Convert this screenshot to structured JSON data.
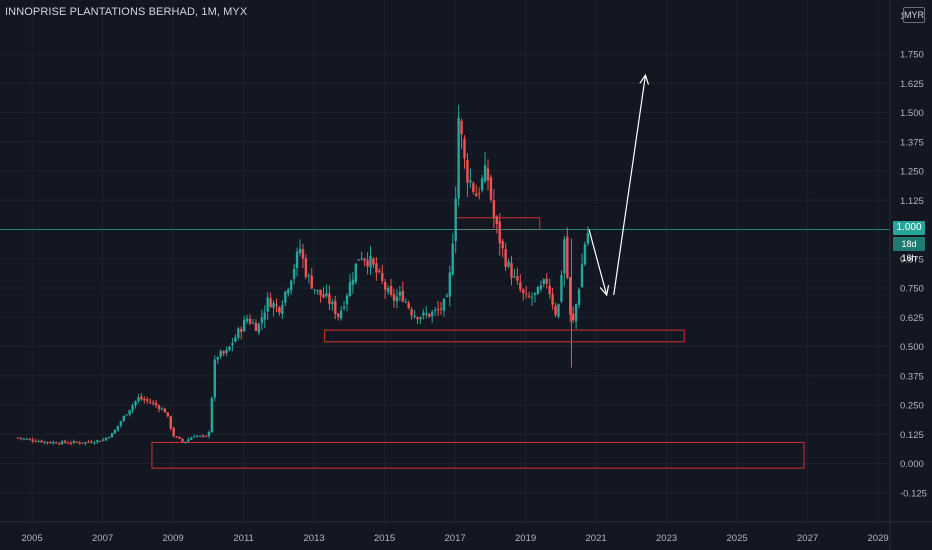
{
  "header": {
    "title": "INNOPRISE PLANTATIONS BERHAD, 1M, MYX",
    "currency": "MYR"
  },
  "price_tag": {
    "value": "1.000",
    "countdown": "18d 16h"
  },
  "colors": {
    "background": "#131722",
    "grid": "#1e222d",
    "up": "#26a69a",
    "down": "#ef5350",
    "zone": "#d32f2f",
    "arrow": "#ffffff",
    "axis_text": "#b2b5be"
  },
  "chart_data": {
    "type": "candlestick",
    "symbol": "INNOPRISE PLANTATIONS BERHAD",
    "interval": "1M",
    "exchange": "MYX",
    "currency": "MYR",
    "ylim": [
      -0.17,
      1.875
    ],
    "xlim": [
      2004.6,
      2030.0
    ],
    "y_ticks": [
      "1.750",
      "1.625",
      "1.500",
      "1.375",
      "1.250",
      "1.125",
      "1.000",
      "0.875",
      "0.750",
      "0.625",
      "0.500",
      "0.375",
      "0.250",
      "0.125",
      "0.000",
      "-0.125"
    ],
    "x_ticks": [
      "2005",
      "2007",
      "2009",
      "2011",
      "2013",
      "2015",
      "2017",
      "2019",
      "2021",
      "2023",
      "2025",
      "2027",
      "2029"
    ],
    "close_series": [
      [
        2004.6,
        0.11
      ],
      [
        2005.0,
        0.1
      ],
      [
        2005.5,
        0.09
      ],
      [
        2006.0,
        0.09
      ],
      [
        2006.5,
        0.09
      ],
      [
        2007.0,
        0.1
      ],
      [
        2007.3,
        0.13
      ],
      [
        2007.6,
        0.2
      ],
      [
        2008.0,
        0.28
      ],
      [
        2008.4,
        0.26
      ],
      [
        2008.8,
        0.22
      ],
      [
        2009.0,
        0.12
      ],
      [
        2009.3,
        0.09
      ],
      [
        2009.6,
        0.12
      ],
      [
        2010.0,
        0.11
      ],
      [
        2010.2,
        0.46
      ],
      [
        2010.5,
        0.47
      ],
      [
        2010.8,
        0.55
      ],
      [
        2011.1,
        0.62
      ],
      [
        2011.4,
        0.58
      ],
      [
        2011.7,
        0.7
      ],
      [
        2012.0,
        0.66
      ],
      [
        2012.3,
        0.78
      ],
      [
        2012.6,
        0.92
      ],
      [
        2012.8,
        0.8
      ],
      [
        2013.1,
        0.73
      ],
      [
        2013.4,
        0.7
      ],
      [
        2013.7,
        0.63
      ],
      [
        2014.0,
        0.76
      ],
      [
        2014.3,
        0.9
      ],
      [
        2014.6,
        0.86
      ],
      [
        2014.9,
        0.78
      ],
      [
        2015.2,
        0.7
      ],
      [
        2015.5,
        0.72
      ],
      [
        2015.8,
        0.64
      ],
      [
        2016.1,
        0.63
      ],
      [
        2016.5,
        0.65
      ],
      [
        2016.8,
        0.7
      ],
      [
        2017.0,
        1.1
      ],
      [
        2017.1,
        1.48
      ],
      [
        2017.3,
        1.25
      ],
      [
        2017.6,
        1.15
      ],
      [
        2017.9,
        1.25
      ],
      [
        2018.1,
        1.05
      ],
      [
        2018.4,
        0.88
      ],
      [
        2018.7,
        0.78
      ],
      [
        2019.0,
        0.7
      ],
      [
        2019.3,
        0.72
      ],
      [
        2019.6,
        0.78
      ],
      [
        2019.9,
        0.62
      ],
      [
        2020.1,
        0.96
      ],
      [
        2020.3,
        0.56
      ],
      [
        2020.5,
        0.74
      ],
      [
        2020.7,
        0.96
      ],
      [
        2020.8,
        1.0
      ]
    ],
    "zones": [
      {
        "x": [
          2008.4,
          2026.9
        ],
        "y": [
          0.09,
          -0.02
        ]
      },
      {
        "x": [
          2013.3,
          2023.5
        ],
        "y": [
          0.57,
          0.52
        ]
      },
      {
        "x": [
          2017.0,
          2019.4
        ],
        "y": [
          1.05,
          1.0
        ]
      }
    ],
    "arrows": [
      {
        "from": [
          2020.8,
          1.0
        ],
        "to": [
          2021.3,
          0.72
        ]
      },
      {
        "from": [
          2021.5,
          0.72
        ],
        "to": [
          2022.4,
          1.66
        ]
      }
    ],
    "last_price": 1.0,
    "last_price_label": "1.000",
    "countdown_label": "18d 16h",
    "grid": true
  }
}
